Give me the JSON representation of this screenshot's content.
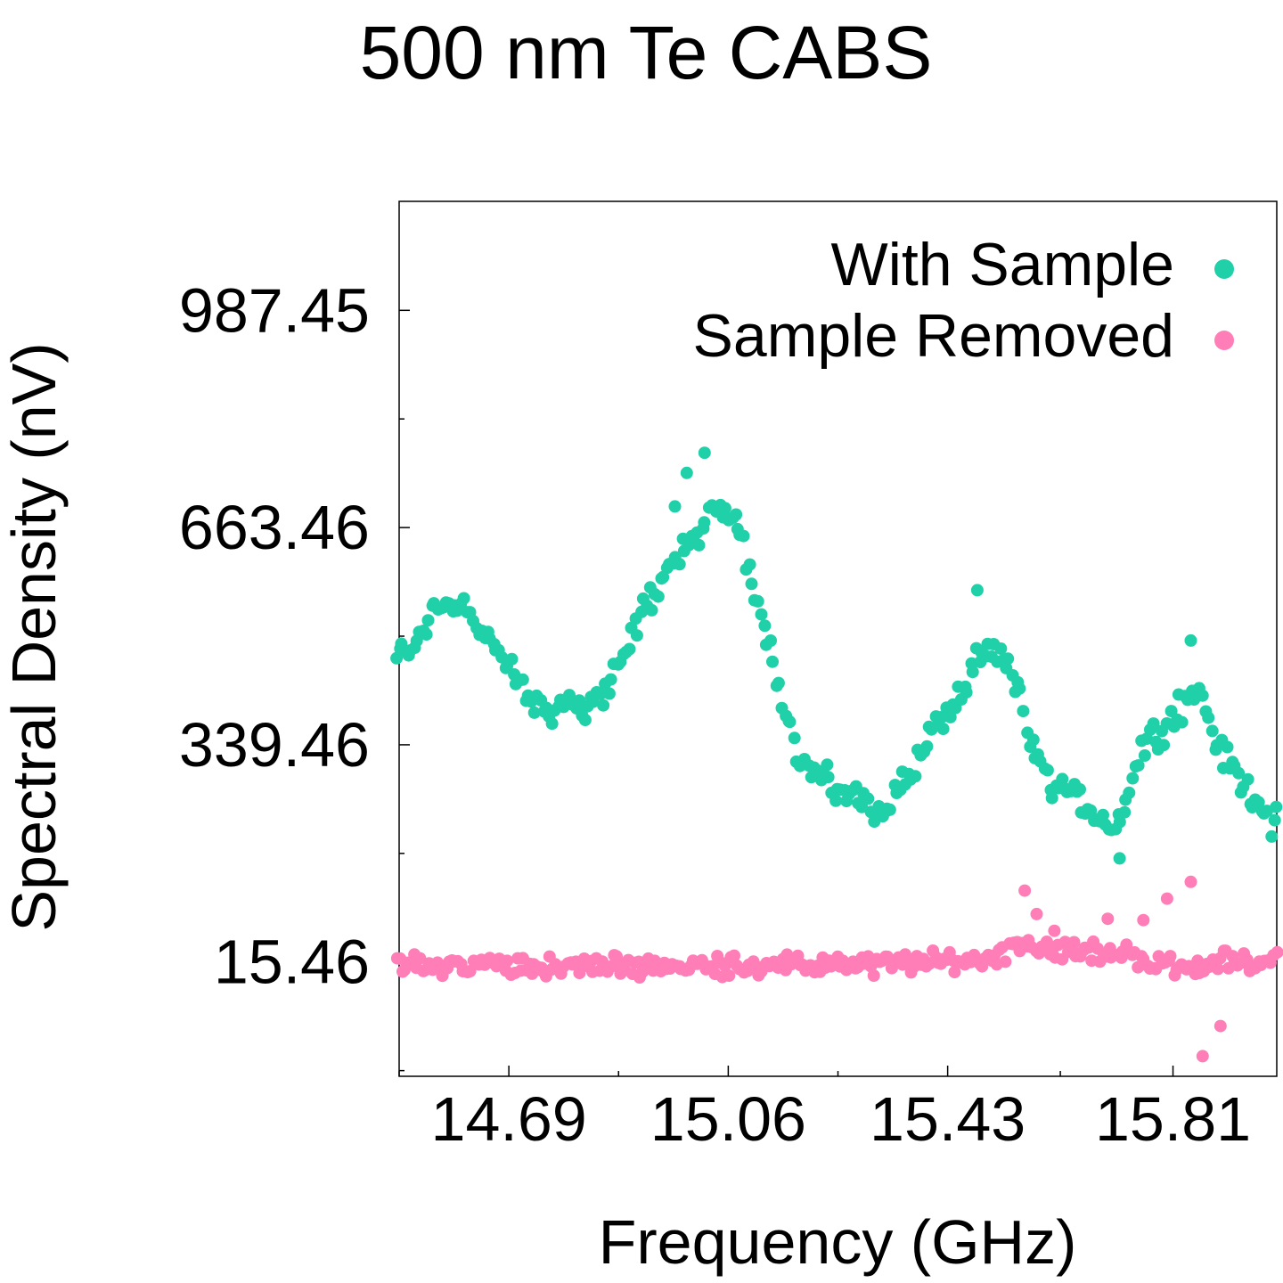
{
  "chart_data": {
    "type": "scatter",
    "title": "500 nm Te CABS",
    "xlabel": "Frequency (GHz)",
    "ylabel": "Spectral Density (nV)",
    "xlim": [
      14.505,
      15.985
    ],
    "ylim": [
      -155,
      1150
    ],
    "xticks": [
      14.69,
      15.06,
      15.43,
      15.81
    ],
    "xtick_labels": [
      "14.69",
      "15.06",
      "15.43",
      "15.81"
    ],
    "x_minor_ticks": [
      14.505,
      14.875,
      15.245,
      15.62
    ],
    "yticks": [
      15.46,
      339.46,
      663.46,
      987.45
    ],
    "ytick_labels": [
      "15.46",
      "339.46",
      "663.46",
      "987.45"
    ],
    "y_minor_ticks": [
      -146.54,
      177.46,
      501.46,
      825.46
    ],
    "grid": false,
    "legend_position": "top-right",
    "series": [
      {
        "name": "With Sample",
        "color": "#20d0a8",
        "anchors": [
          [
            14.5,
            470
          ],
          [
            14.53,
            483
          ],
          [
            14.56,
            540
          ],
          [
            14.59,
            556
          ],
          [
            14.62,
            545
          ],
          [
            14.65,
            500
          ],
          [
            14.68,
            465
          ],
          [
            14.71,
            425
          ],
          [
            14.73,
            400
          ],
          [
            14.76,
            392
          ],
          [
            14.79,
            398
          ],
          [
            14.82,
            400
          ],
          [
            14.85,
            418
          ],
          [
            14.88,
            460
          ],
          [
            14.91,
            530
          ],
          [
            14.94,
            575
          ],
          [
            14.97,
            615
          ],
          [
            15.0,
            648
          ],
          [
            15.03,
            680
          ],
          [
            15.06,
            690
          ],
          [
            15.08,
            655
          ],
          [
            15.1,
            590
          ],
          [
            15.12,
            520
          ],
          [
            15.15,
            420
          ],
          [
            15.18,
            310
          ],
          [
            15.21,
            295
          ],
          [
            15.24,
            275
          ],
          [
            15.27,
            260
          ],
          [
            15.3,
            250
          ],
          [
            15.32,
            245
          ],
          [
            15.35,
            275
          ],
          [
            15.38,
            315
          ],
          [
            15.4,
            355
          ],
          [
            15.43,
            390
          ],
          [
            15.46,
            420
          ],
          [
            15.48,
            460
          ],
          [
            15.5,
            475
          ],
          [
            15.52,
            465
          ],
          [
            15.55,
            430
          ],
          [
            15.57,
            340
          ],
          [
            15.6,
            285
          ],
          [
            15.63,
            270
          ],
          [
            15.66,
            250
          ],
          [
            15.69,
            230
          ],
          [
            15.71,
            212
          ],
          [
            15.74,
            285
          ],
          [
            15.76,
            345
          ],
          [
            15.79,
            360
          ],
          [
            15.82,
            395
          ],
          [
            15.85,
            415
          ],
          [
            15.87,
            380
          ],
          [
            15.89,
            330
          ],
          [
            15.92,
            288
          ],
          [
            15.95,
            258
          ],
          [
            15.98,
            225
          ]
        ],
        "outliers": [
          [
            14.97,
            695
          ],
          [
            14.99,
            745
          ],
          [
            15.02,
            775
          ],
          [
            15.48,
            570
          ],
          [
            15.72,
            170
          ],
          [
            15.84,
            495
          ]
        ]
      },
      {
        "name": "Sample Removed",
        "color": "#ff7eb8",
        "anchors": [
          [
            14.5,
            10
          ],
          [
            14.6,
            10
          ],
          [
            14.7,
            12
          ],
          [
            14.8,
            8
          ],
          [
            14.9,
            10
          ],
          [
            15.0,
            10
          ],
          [
            15.1,
            12
          ],
          [
            15.2,
            10
          ],
          [
            15.3,
            12
          ],
          [
            15.4,
            14
          ],
          [
            15.5,
            20
          ],
          [
            15.55,
            45
          ],
          [
            15.6,
            38
          ],
          [
            15.65,
            32
          ],
          [
            15.7,
            28
          ],
          [
            15.75,
            25
          ],
          [
            15.8,
            8
          ],
          [
            15.85,
            10
          ],
          [
            15.9,
            18
          ],
          [
            15.98,
            15
          ]
        ],
        "outliers": [
          [
            15.56,
            122
          ],
          [
            15.58,
            87
          ],
          [
            15.61,
            62
          ],
          [
            15.7,
            80
          ],
          [
            15.76,
            78
          ],
          [
            15.8,
            110
          ],
          [
            15.84,
            135
          ],
          [
            15.89,
            -80
          ],
          [
            15.86,
            -125
          ]
        ]
      }
    ]
  }
}
